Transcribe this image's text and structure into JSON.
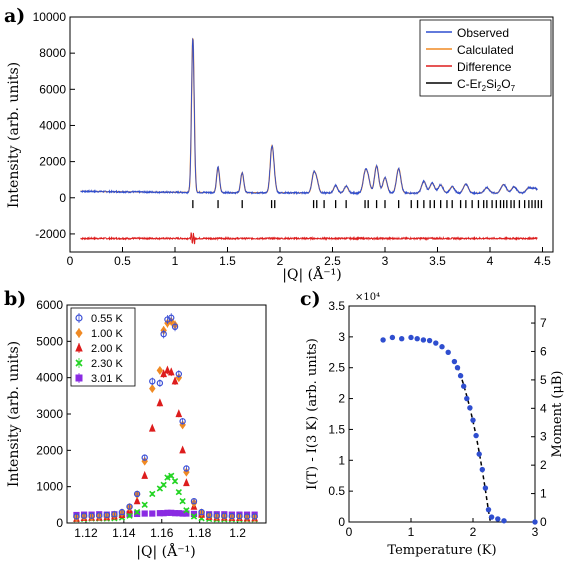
{
  "panel_labels": {
    "a": "a)",
    "b": "b)",
    "c": "c)"
  },
  "chart_data": [
    {
      "id": "a",
      "type": "line",
      "xlabel": "|Q| (Å⁻¹)",
      "ylabel": "Intensity (arb. units)",
      "xlim": [
        0,
        4.6
      ],
      "ylim": [
        -3000,
        10000
      ],
      "xticks": [
        0,
        0.5,
        1,
        1.5,
        2,
        2.5,
        3,
        3.5,
        4,
        4.5
      ],
      "xtick_labels": [
        "0",
        "0.5",
        "1",
        "1.5",
        "2",
        "2.5",
        "3",
        "3.5",
        "4",
        "4.5"
      ],
      "yticks": [
        -2000,
        0,
        2000,
        4000,
        6000,
        8000,
        10000
      ],
      "ytick_labels": [
        "-2000",
        "0",
        "2000",
        "4000",
        "6000",
        "8000",
        "10000"
      ],
      "legend": {
        "position": "top-right",
        "entries": [
          {
            "label": "Observed",
            "color": "#2f4ecf"
          },
          {
            "label": "Calculated",
            "color": "#f08a24"
          },
          {
            "label": "Difference",
            "color": "#dd1d1d"
          },
          {
            "label_main": "C-Er",
            "sub1": "2",
            "mid": "Si",
            "sub2": "2",
            "tail": "O",
            "sub3": "7",
            "color": "#000000"
          }
        ]
      },
      "background_level": 250,
      "difference_offset": -2250,
      "peaks": [
        {
          "q": 1.17,
          "height": 8550
        },
        {
          "q": 1.41,
          "height": 1400
        },
        {
          "q": 1.64,
          "height": 1100
        },
        {
          "q": 1.92,
          "height": 2100
        },
        {
          "q": 1.94,
          "height": 950
        },
        {
          "q": 2.32,
          "height": 1000
        },
        {
          "q": 2.35,
          "height": 650
        },
        {
          "q": 2.53,
          "height": 420
        },
        {
          "q": 2.63,
          "height": 380
        },
        {
          "q": 2.81,
          "height": 1050
        },
        {
          "q": 2.84,
          "height": 700
        },
        {
          "q": 2.92,
          "height": 1500
        },
        {
          "q": 3.0,
          "height": 850
        },
        {
          "q": 3.13,
          "height": 1350
        },
        {
          "q": 3.37,
          "height": 650
        },
        {
          "q": 3.45,
          "height": 550
        },
        {
          "q": 3.53,
          "height": 450
        },
        {
          "q": 3.64,
          "height": 350
        },
        {
          "q": 3.77,
          "height": 500
        },
        {
          "q": 3.97,
          "height": 300
        },
        {
          "q": 4.13,
          "height": 480
        },
        {
          "q": 4.23,
          "height": 350
        },
        {
          "q": 4.37,
          "height": 300
        },
        {
          "q": 4.43,
          "height": 250
        }
      ],
      "reflection_positions": [
        1.17,
        1.41,
        1.64,
        1.92,
        1.95,
        2.32,
        2.35,
        2.42,
        2.53,
        2.63,
        2.81,
        2.84,
        2.92,
        3.0,
        3.13,
        3.25,
        3.31,
        3.37,
        3.43,
        3.47,
        3.53,
        3.59,
        3.64,
        3.72,
        3.77,
        3.83,
        3.89,
        3.94,
        3.97,
        4.02,
        4.06,
        4.1,
        4.13,
        4.16,
        4.2,
        4.23,
        4.28,
        4.33,
        4.37,
        4.4,
        4.43,
        4.46,
        4.49
      ],
      "reflection_level": -350
    },
    {
      "id": "b",
      "type": "scatter",
      "xlabel": "|Q| (Å⁻¹)",
      "ylabel": "Intensity (arb. units)",
      "xlim": [
        1.11,
        1.215
      ],
      "ylim": [
        0,
        6000
      ],
      "xticks": [
        1.12,
        1.14,
        1.16,
        1.18,
        1.2
      ],
      "xtick_labels": [
        "1.12",
        "1.14",
        "1.16",
        "1.18",
        "1.2"
      ],
      "yticks": [
        0,
        1000,
        2000,
        3000,
        4000,
        5000,
        6000
      ],
      "ytick_labels": [
        "0",
        "1000",
        "2000",
        "3000",
        "4000",
        "5000",
        "6000"
      ],
      "legend": {
        "position": "top-left"
      },
      "x": [
        1.115,
        1.119,
        1.123,
        1.127,
        1.131,
        1.135,
        1.139,
        1.143,
        1.147,
        1.151,
        1.155,
        1.159,
        1.161,
        1.163,
        1.165,
        1.167,
        1.169,
        1.171,
        1.173,
        1.177,
        1.181,
        1.185,
        1.189,
        1.193,
        1.197,
        1.201,
        1.205,
        1.209
      ],
      "series": [
        {
          "name": "0.55 K",
          "color": "#3b4fd6",
          "marker": "circle",
          "values": [
            180,
            200,
            200,
            210,
            220,
            240,
            300,
            450,
            800,
            1800,
            3900,
            3850,
            5200,
            5600,
            5650,
            5400,
            4100,
            2800,
            1500,
            600,
            300,
            220,
            200,
            200,
            190,
            190,
            180,
            180
          ]
        },
        {
          "name": "1.00 K",
          "color": "#f08a24",
          "marker": "diamond",
          "values": [
            150,
            170,
            170,
            180,
            200,
            220,
            280,
            430,
            780,
            1700,
            3700,
            4200,
            5300,
            5500,
            5550,
            5450,
            4000,
            2700,
            1400,
            550,
            280,
            200,
            180,
            180,
            170,
            170,
            160,
            160
          ]
        },
        {
          "name": "2.00 K",
          "color": "#dd1d1d",
          "marker": "triangle",
          "values": [
            120,
            140,
            150,
            150,
            160,
            180,
            220,
            350,
            600,
            1300,
            2600,
            3300,
            4100,
            4200,
            4150,
            3900,
            3000,
            2000,
            1100,
            450,
            230,
            170,
            150,
            150,
            140,
            140,
            130,
            130
          ]
        },
        {
          "name": "2.30 K",
          "color": "#22d422",
          "marker": "x",
          "values": [
            100,
            110,
            120,
            120,
            120,
            130,
            150,
            200,
            300,
            500,
            800,
            950,
            1050,
            1250,
            1300,
            1150,
            850,
            600,
            350,
            180,
            130,
            110,
            100,
            100,
            100,
            100,
            100,
            100
          ]
        },
        {
          "name": "3.01 K",
          "color": "#8a2be2",
          "marker": "square",
          "values": [
            220,
            230,
            230,
            240,
            230,
            240,
            240,
            250,
            250,
            260,
            260,
            270,
            270,
            280,
            280,
            270,
            270,
            260,
            260,
            250,
            250,
            240,
            240,
            240,
            230,
            230,
            230,
            230
          ]
        }
      ]
    },
    {
      "id": "c",
      "type": "scatter",
      "xlabel": "Temperature (K)",
      "ylabel": "I(T) - I(3 K) (arb. units)",
      "y2label": "Moment (μB)",
      "y_multiplier": "×10⁴",
      "xlim": [
        0,
        3
      ],
      "ylim": [
        0,
        35000
      ],
      "y2lim": [
        0,
        7.6
      ],
      "xticks": [
        0,
        1,
        2,
        3
      ],
      "xtick_labels": [
        "0",
        "1",
        "2",
        "3"
      ],
      "yticks": [
        0,
        5000,
        10000,
        15000,
        20000,
        25000,
        30000,
        35000
      ],
      "ytick_labels": [
        "0",
        "0.5",
        "1",
        "1.5",
        "2",
        "2.5",
        "3",
        "3.5"
      ],
      "y2ticks": [
        0,
        1,
        2,
        3,
        4,
        5,
        6,
        7
      ],
      "y2tick_labels": [
        "0",
        "1",
        "2",
        "3",
        "4",
        "5",
        "6",
        "7"
      ],
      "marker_color": "#2f4ecf",
      "x": [
        0.55,
        0.7,
        0.85,
        1.0,
        1.1,
        1.2,
        1.3,
        1.4,
        1.5,
        1.6,
        1.7,
        1.75,
        1.8,
        1.85,
        1.9,
        1.95,
        2.0,
        2.05,
        2.1,
        2.15,
        2.2,
        2.25,
        2.3,
        2.4,
        2.5,
        3.0
      ],
      "values": [
        29500,
        29900,
        29700,
        29900,
        29700,
        29500,
        29400,
        29000,
        28400,
        27500,
        26000,
        25000,
        23700,
        22000,
        20000,
        18500,
        16500,
        14000,
        11000,
        8500,
        5500,
        2000,
        800,
        500,
        200,
        0
      ],
      "fit": {
        "style": "dashed",
        "color": "#000000",
        "x": [
          1.75,
          1.8,
          1.85,
          1.9,
          1.95,
          2.0,
          2.05,
          2.1,
          2.15,
          2.2,
          2.25,
          2.28
        ],
        "values": [
          25200,
          23800,
          22200,
          20400,
          18500,
          16300,
          14000,
          11300,
          8400,
          5200,
          1800,
          0
        ]
      }
    }
  ]
}
